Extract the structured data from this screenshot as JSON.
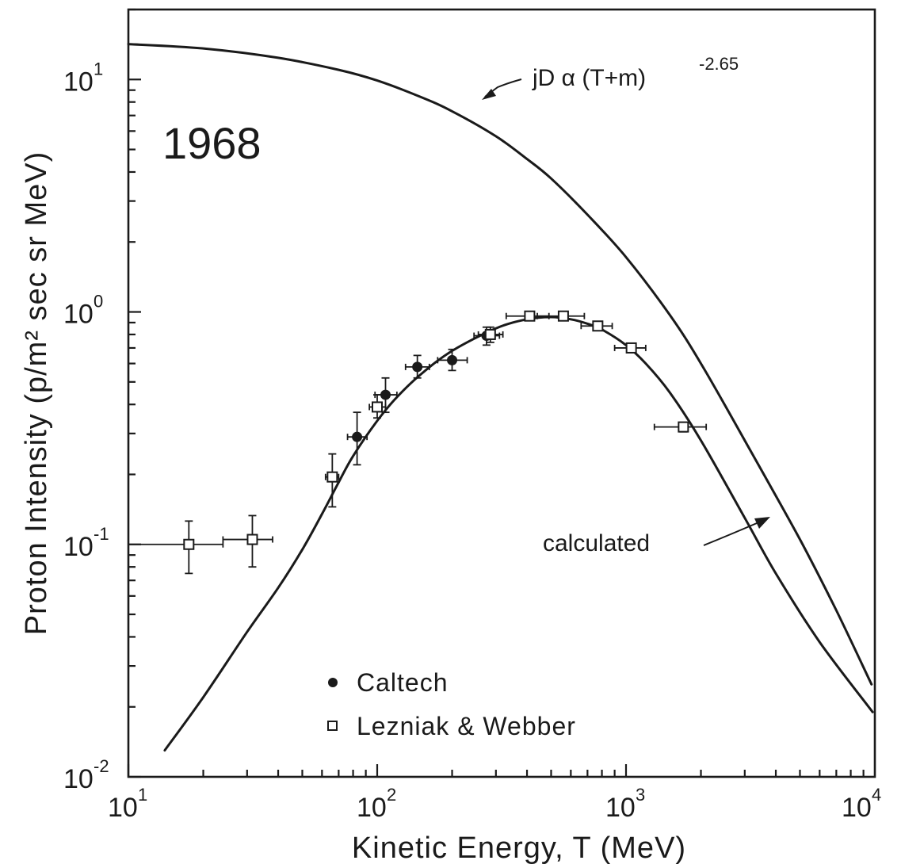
{
  "chart_data": {
    "type": "scatter",
    "year_label": "1968",
    "xlabel": "Kinetic Energy, T (MeV)",
    "ylabel": "Proton Intensity (p/m² sec sr MeV)",
    "xscale": "log",
    "yscale": "log",
    "xlim": [
      10,
      10000
    ],
    "ylim": [
      0.01,
      20
    ],
    "grid": false,
    "x_ticks": [
      {
        "value": 10,
        "base": "10",
        "exp": "1"
      },
      {
        "value": 100,
        "base": "10",
        "exp": "2"
      },
      {
        "value": 1000,
        "base": "10",
        "exp": "3"
      },
      {
        "value": 10000,
        "base": "10",
        "exp": "4"
      }
    ],
    "y_ticks": [
      {
        "value": 0.01,
        "base": "10",
        "exp": "-2"
      },
      {
        "value": 0.1,
        "base": "10",
        "exp": "-1"
      },
      {
        "value": 1,
        "base": "10",
        "exp": "0"
      },
      {
        "value": 10,
        "base": "10",
        "exp": "1"
      }
    ],
    "curves": [
      {
        "label": "jD α (T+m)",
        "label_exp": "-2.65",
        "points": [
          [
            10,
            14.2
          ],
          [
            20,
            13.6
          ],
          [
            40,
            12.4
          ],
          [
            70,
            11.0
          ],
          [
            100,
            9.9
          ],
          [
            150,
            8.4
          ],
          [
            200,
            7.3
          ],
          [
            300,
            5.7
          ],
          [
            400,
            4.55
          ],
          [
            500,
            3.75
          ],
          [
            700,
            2.62
          ],
          [
            1000,
            1.72
          ],
          [
            1500,
            0.97
          ],
          [
            2000,
            0.6
          ],
          [
            3000,
            0.28
          ],
          [
            5000,
            0.105
          ],
          [
            7000,
            0.052
          ],
          [
            9700,
            0.025
          ]
        ]
      },
      {
        "label": "calculated",
        "points": [
          [
            14,
            0.013
          ],
          [
            20,
            0.022
          ],
          [
            30,
            0.042
          ],
          [
            40,
            0.065
          ],
          [
            50,
            0.095
          ],
          [
            60,
            0.135
          ],
          [
            70,
            0.185
          ],
          [
            80,
            0.24
          ],
          [
            100,
            0.34
          ],
          [
            120,
            0.43
          ],
          [
            150,
            0.54
          ],
          [
            200,
            0.68
          ],
          [
            300,
            0.85
          ],
          [
            400,
            0.93
          ],
          [
            500,
            0.95
          ],
          [
            600,
            0.93
          ],
          [
            700,
            0.89
          ],
          [
            800,
            0.84
          ],
          [
            1000,
            0.72
          ],
          [
            1200,
            0.6
          ],
          [
            1500,
            0.45
          ],
          [
            2000,
            0.28
          ],
          [
            3000,
            0.13
          ],
          [
            4000,
            0.075
          ],
          [
            6000,
            0.038
          ],
          [
            9800,
            0.019
          ]
        ]
      }
    ],
    "series": [
      {
        "name": "Caltech",
        "marker": "filled-circle",
        "points": [
          {
            "x": 83,
            "y": 0.29,
            "xerr": [
              76,
              91
            ],
            "yerr": [
              0.22,
              0.37
            ]
          },
          {
            "x": 108,
            "y": 0.44,
            "xerr": [
              98,
              120
            ],
            "yerr": [
              0.37,
              0.52
            ]
          },
          {
            "x": 145,
            "y": 0.58,
            "xerr": [
              130,
              162
            ],
            "yerr": [
              0.52,
              0.65
            ]
          },
          {
            "x": 200,
            "y": 0.62,
            "xerr": [
              175,
              230
            ],
            "yerr": [
              0.56,
              0.69
            ]
          },
          {
            "x": 275,
            "y": 0.79,
            "xerr": [
              245,
              310
            ],
            "yerr": [
              0.72,
              0.86
            ]
          }
        ]
      },
      {
        "name": "Lezniak & Webber",
        "marker": "open-square",
        "points": [
          {
            "x": 17.5,
            "y": 0.1,
            "xerr": [
              10,
              24
            ],
            "yerr": [
              0.075,
              0.126
            ]
          },
          {
            "x": 31.5,
            "y": 0.105,
            "xerr": [
              24,
              38
            ],
            "yerr": [
              0.08,
              0.133
            ]
          },
          {
            "x": 66,
            "y": 0.195,
            "xerr": [
              62,
              70
            ],
            "yerr": [
              0.145,
              0.245
            ]
          },
          {
            "x": 100,
            "y": 0.39,
            "xerr": [
              93,
              108
            ],
            "yerr": [
              0.35,
              0.44
            ]
          },
          {
            "x": 285,
            "y": 0.8,
            "xerr": [
              255,
              320
            ],
            "yerr": [
              0.74,
              0.86
            ]
          },
          {
            "x": 410,
            "y": 0.96,
            "xerr": [
              330,
              490
            ],
            "yerr": [
              0.93,
              0.99
            ]
          },
          {
            "x": 560,
            "y": 0.96,
            "xerr": [
              440,
              680
            ],
            "yerr": [
              0.93,
              0.99
            ]
          },
          {
            "x": 770,
            "y": 0.87,
            "xerr": [
              660,
              880
            ],
            "yerr": [
              0.84,
              0.9
            ]
          },
          {
            "x": 1050,
            "y": 0.7,
            "xerr": [
              900,
              1200
            ],
            "yerr": [
              0.67,
              0.73
            ]
          },
          {
            "x": 1700,
            "y": 0.32,
            "xerr": [
              1300,
              2100
            ],
            "yerr": [
              0.305,
              0.335
            ]
          }
        ]
      }
    ]
  }
}
